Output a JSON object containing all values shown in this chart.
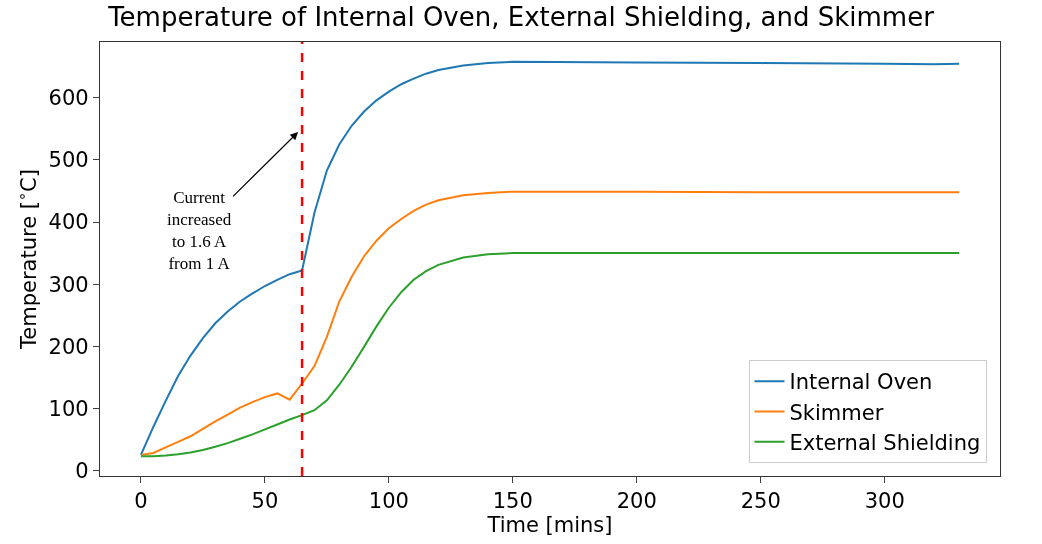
{
  "chart_data": {
    "type": "line",
    "title": "Temperature of Internal Oven, External Shielding, and Skimmer",
    "xlabel": "Time [mins]",
    "ylabel": "Temperature [$^{∘}$C]",
    "x": [
      0,
      5,
      10,
      15,
      20,
      25,
      30,
      35,
      40,
      45,
      50,
      55,
      60,
      65,
      70,
      75,
      80,
      85,
      90,
      95,
      100,
      105,
      110,
      115,
      120,
      130,
      140,
      150,
      200,
      250,
      300,
      320,
      330
    ],
    "series": [
      {
        "name": "Internal Oven",
        "color": "#1f77b4",
        "values": [
          25,
          70,
          112,
          152,
          185,
          213,
          237,
          256,
          272,
          285,
          297,
          307,
          316,
          322,
          415,
          483,
          525,
          555,
          578,
          596,
          610,
          622,
          631,
          639,
          645,
          652,
          656,
          658,
          657,
          656,
          655,
          654,
          655
        ]
      },
      {
        "name": "Skimmer",
        "color": "#ff7f0e",
        "values": [
          25,
          28,
          37,
          46,
          55,
          67,
          79,
          90,
          101,
          110,
          118,
          124,
          114,
          140,
          168,
          215,
          272,
          312,
          345,
          370,
          390,
          405,
          418,
          428,
          435,
          443,
          447,
          449,
          449,
          448,
          448,
          448,
          448
        ]
      },
      {
        "name": "External Shielding",
        "color": "#2ca02c",
        "values": [
          23,
          23,
          24,
          26,
          29,
          33,
          38,
          44,
          51,
          58,
          66,
          74,
          82,
          89,
          97,
          113,
          138,
          167,
          199,
          232,
          262,
          287,
          307,
          321,
          331,
          343,
          348,
          350,
          350,
          350,
          350,
          350,
          350
        ]
      }
    ],
    "xlim": [
      -16.5,
      346.5
    ],
    "ylim": [
      -9,
      690
    ],
    "xticks": [
      0,
      50,
      100,
      150,
      200,
      250,
      300
    ],
    "yticks": [
      0,
      100,
      200,
      300,
      400,
      500,
      600
    ],
    "ref_lines": [
      {
        "axis": "x",
        "value": 65,
        "color": "#ff0000",
        "line_style": "dashed"
      }
    ],
    "annotations": [
      {
        "text": "Current\nincreased\nto 1.6 A\nfrom 1 A",
        "x": 65,
        "y": 545
      }
    ],
    "legend": "bottom right",
    "marker": "none",
    "line_style": "solid"
  }
}
